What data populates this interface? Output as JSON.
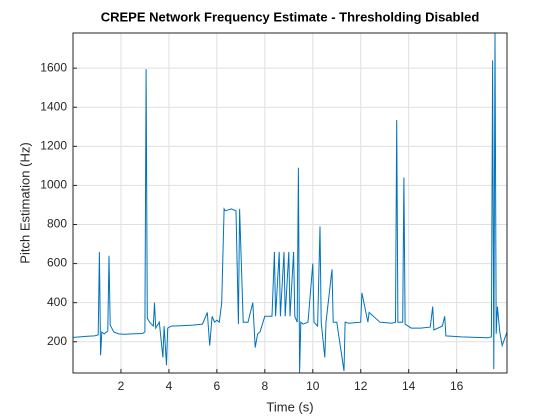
{
  "chart_data": {
    "type": "line",
    "title": "CREPE Network Frequency Estimate - Thresholding Disabled",
    "x_label": "Time (s)",
    "y_label": "Pitch Estimation (Hz)",
    "x": [
      0,
      0.3,
      0.6,
      0.9,
      1.05,
      1.1,
      1.15,
      1.2,
      1.3,
      1.45,
      1.5,
      1.55,
      1.7,
      1.9,
      2.1,
      2.5,
      2.9,
      3.0,
      3.05,
      3.1,
      3.2,
      3.35,
      3.4,
      3.45,
      3.6,
      3.75,
      3.8,
      3.9,
      3.95,
      4.1,
      4.5,
      5.0,
      5.4,
      5.6,
      5.7,
      5.8,
      5.9,
      6.0,
      6.1,
      6.2,
      6.3,
      6.35,
      6.6,
      6.8,
      6.9,
      6.95,
      7.1,
      7.3,
      7.5,
      7.6,
      7.7,
      7.8,
      8.0,
      8.3,
      8.4,
      8.45,
      8.6,
      8.65,
      8.8,
      8.85,
      9.0,
      9.05,
      9.2,
      9.25,
      9.35,
      9.4,
      9.45,
      9.5,
      9.6,
      9.8,
      10.0,
      10.05,
      10.2,
      10.3,
      10.35,
      10.5,
      10.55,
      10.8,
      10.85,
      11.0,
      11.3,
      11.35,
      11.5,
      12.0,
      12.05,
      12.3,
      12.35,
      12.8,
      13.3,
      13.45,
      13.5,
      13.55,
      13.75,
      13.8,
      13.85,
      14.1,
      14.5,
      14.9,
      15.0,
      15.05,
      15.4,
      15.5,
      15.55,
      15.8,
      16.2,
      16.8,
      17.3,
      17.45,
      17.5,
      17.55,
      17.6,
      17.65,
      17.7,
      17.8,
      17.9,
      18.1
    ],
    "values": [
      222,
      225,
      228,
      230,
      235,
      660,
      130,
      250,
      240,
      255,
      640,
      285,
      250,
      240,
      238,
      240,
      242,
      250,
      1595,
      320,
      300,
      280,
      400,
      270,
      300,
      120,
      280,
      80,
      270,
      280,
      282,
      285,
      290,
      350,
      180,
      330,
      300,
      310,
      300,
      400,
      880,
      870,
      880,
      870,
      290,
      880,
      300,
      300,
      400,
      170,
      240,
      250,
      330,
      330,
      660,
      330,
      660,
      330,
      660,
      330,
      660,
      330,
      660,
      330,
      300,
      1090,
      40,
      300,
      290,
      300,
      600,
      300,
      280,
      790,
      300,
      120,
      300,
      570,
      300,
      300,
      50,
      300,
      295,
      300,
      450,
      300,
      350,
      300,
      295,
      300,
      1335,
      300,
      300,
      1040,
      290,
      270,
      270,
      275,
      380,
      260,
      280,
      330,
      230,
      228,
      225,
      222,
      220,
      225,
      1640,
      60,
      1780,
      240,
      380,
      250,
      180,
      250
    ],
    "color": "#0072bd",
    "xlim": [
      0,
      18.1
    ],
    "ylim": [
      40,
      1780
    ],
    "xticks": [
      2,
      4,
      6,
      8,
      10,
      12,
      14,
      16
    ],
    "yticks": [
      200,
      400,
      600,
      800,
      1000,
      1200,
      1400,
      1600
    ],
    "grid": true
  }
}
